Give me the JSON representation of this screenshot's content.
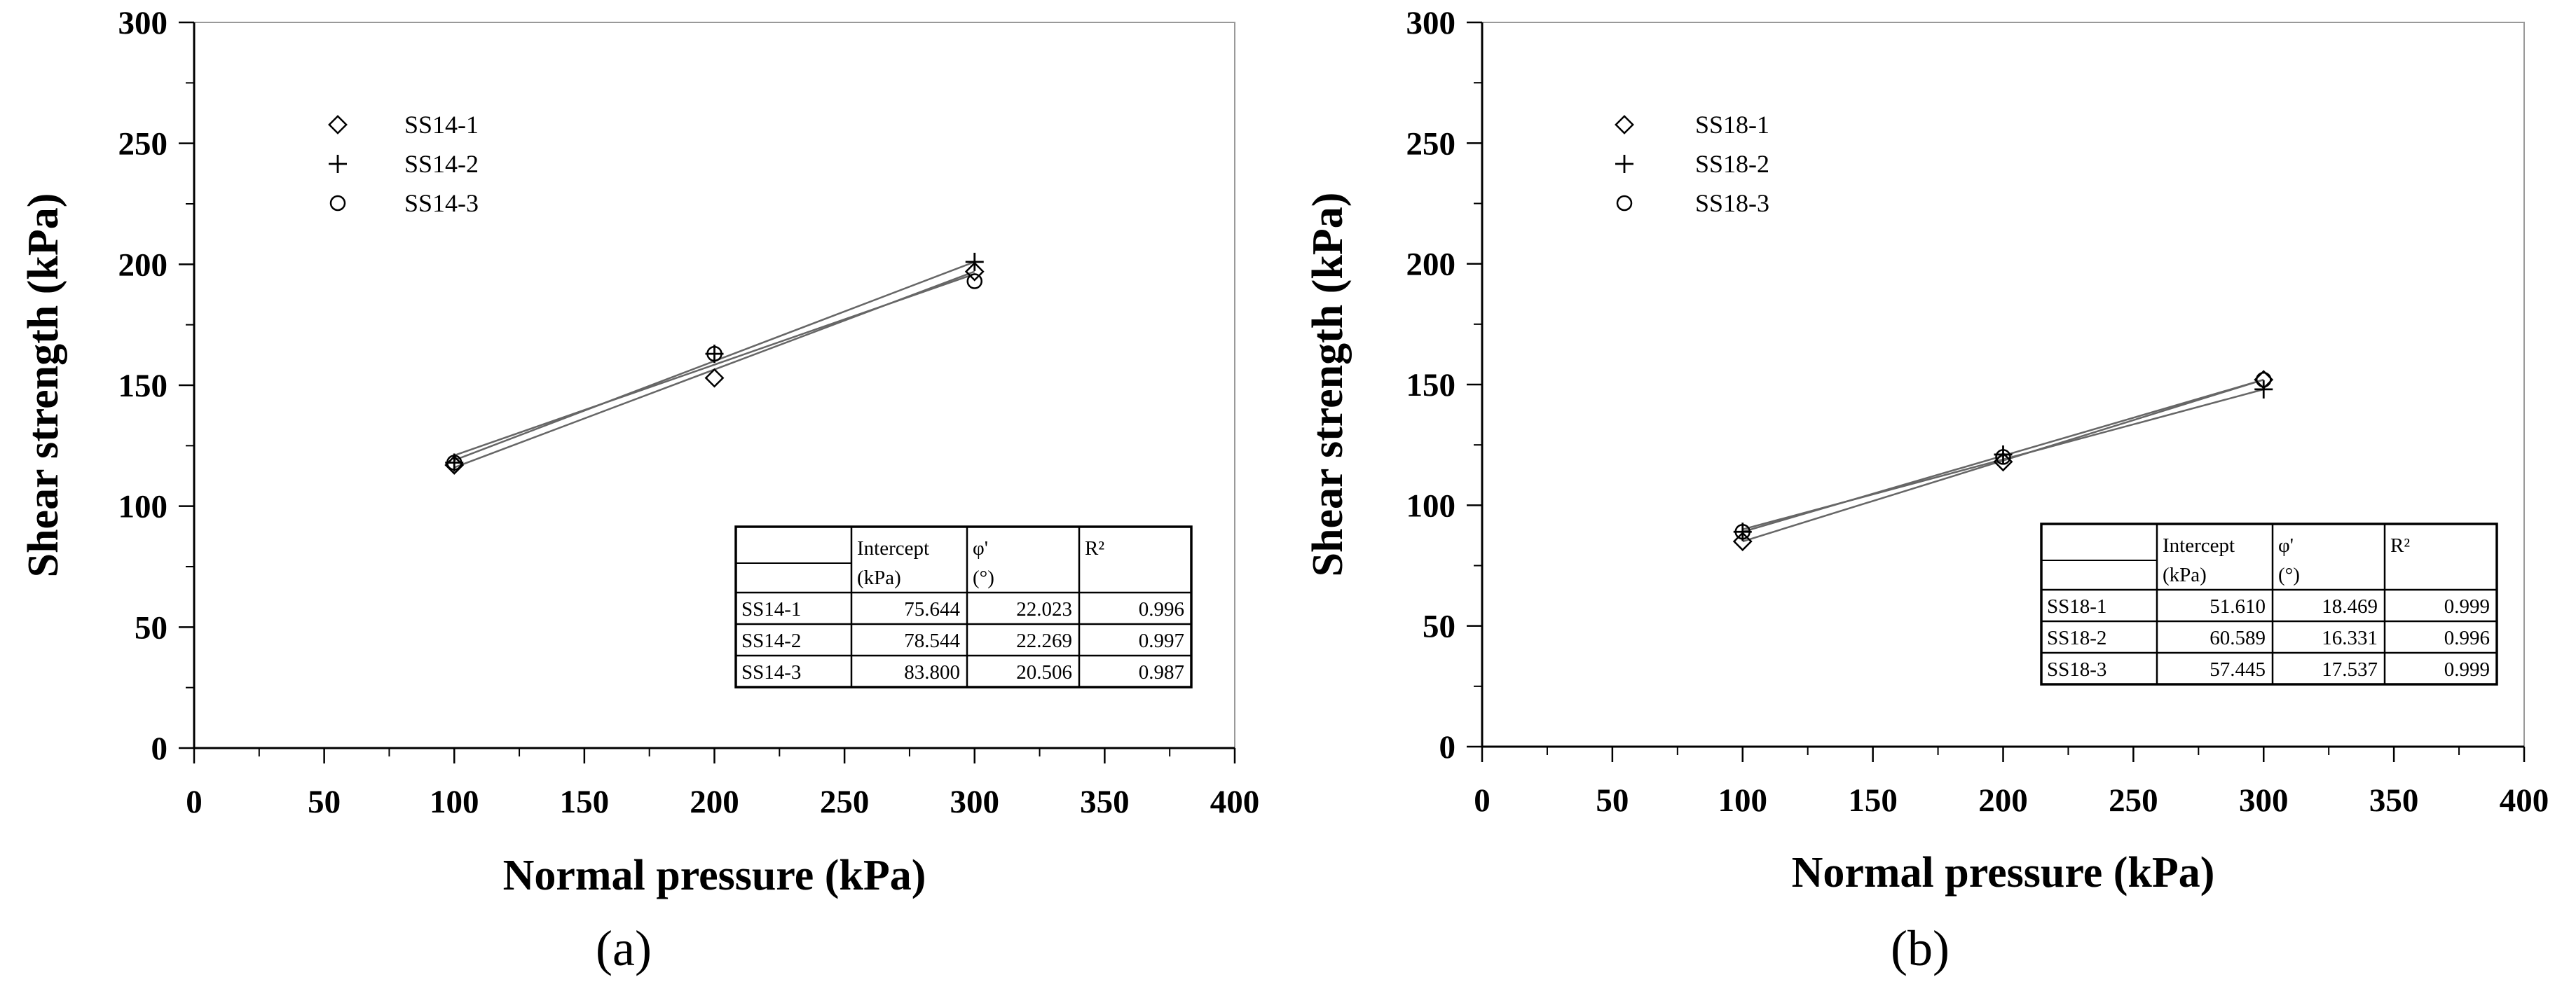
{
  "chart_data": [
    {
      "type": "scatter",
      "caption": "(a)",
      "xlabel": "Normal pressure (kPa)",
      "ylabel": "Shear strength (kPa)",
      "xlim": [
        0,
        400
      ],
      "ylim": [
        0,
        300
      ],
      "xticks": [
        0,
        50,
        100,
        150,
        200,
        250,
        300,
        350,
        400
      ],
      "yticks": [
        0,
        50,
        100,
        150,
        200,
        250,
        300
      ],
      "series": [
        {
          "name": "SS14-1",
          "marker": "diamond",
          "x": [
            100,
            200,
            300
          ],
          "y": [
            117,
            153,
            197
          ]
        },
        {
          "name": "SS14-2",
          "marker": "plus",
          "x": [
            100,
            200,
            300
          ],
          "y": [
            118,
            163,
            201
          ]
        },
        {
          "name": "SS14-3",
          "marker": "circle",
          "x": [
            100,
            200,
            300
          ],
          "y": [
            118,
            163,
            193
          ]
        }
      ],
      "fits": [
        {
          "name": "SS14-1",
          "x": [
            100,
            300
          ],
          "y": [
            116,
            197
          ]
        },
        {
          "name": "SS14-2",
          "x": [
            100,
            300
          ],
          "y": [
            119,
            201
          ]
        },
        {
          "name": "SS14-3",
          "x": [
            100,
            300
          ],
          "y": [
            121,
            196
          ]
        }
      ],
      "table": {
        "header1": [
          "",
          "Intercept",
          "φ'",
          "R²"
        ],
        "header2": [
          "",
          "(kPa)",
          "(°)",
          ""
        ],
        "rows": [
          [
            "SS14-1",
            "75.644",
            "22.023",
            "0.996"
          ],
          [
            "SS14-2",
            "78.544",
            "22.269",
            "0.997"
          ],
          [
            "SS14-3",
            "83.800",
            "20.506",
            "0.987"
          ]
        ]
      }
    },
    {
      "type": "scatter",
      "caption": "(b)",
      "xlabel": "Normal pressure (kPa)",
      "ylabel": "Shear strength (kPa)",
      "xlim": [
        0,
        400
      ],
      "ylim": [
        0,
        300
      ],
      "xticks": [
        0,
        50,
        100,
        150,
        200,
        250,
        300,
        350,
        400
      ],
      "yticks": [
        0,
        50,
        100,
        150,
        200,
        250,
        300
      ],
      "series": [
        {
          "name": "SS18-1",
          "marker": "diamond",
          "x": [
            100,
            200,
            300
          ],
          "y": [
            85,
            118,
            152
          ]
        },
        {
          "name": "SS18-2",
          "marker": "plus",
          "x": [
            100,
            200,
            300
          ],
          "y": [
            89,
            121,
            148
          ]
        },
        {
          "name": "SS18-3",
          "marker": "circle",
          "x": [
            100,
            200,
            300
          ],
          "y": [
            89,
            120,
            152
          ]
        }
      ],
      "fits": [
        {
          "name": "SS18-1",
          "x": [
            100,
            300
          ],
          "y": [
            85,
            152
          ]
        },
        {
          "name": "SS18-2",
          "x": [
            100,
            300
          ],
          "y": [
            90,
            148
          ]
        },
        {
          "name": "SS18-3",
          "x": [
            100,
            300
          ],
          "y": [
            89,
            152
          ]
        }
      ],
      "table": {
        "header1": [
          "",
          "Intercept",
          "φ'",
          "R²"
        ],
        "header2": [
          "",
          "(kPa)",
          "(°)",
          ""
        ],
        "rows": [
          [
            "SS18-1",
            "51.610",
            "18.469",
            "0.999"
          ],
          [
            "SS18-2",
            "60.589",
            "16.331",
            "0.996"
          ],
          [
            "SS18-3",
            "57.445",
            "17.537",
            "0.999"
          ]
        ]
      }
    }
  ]
}
